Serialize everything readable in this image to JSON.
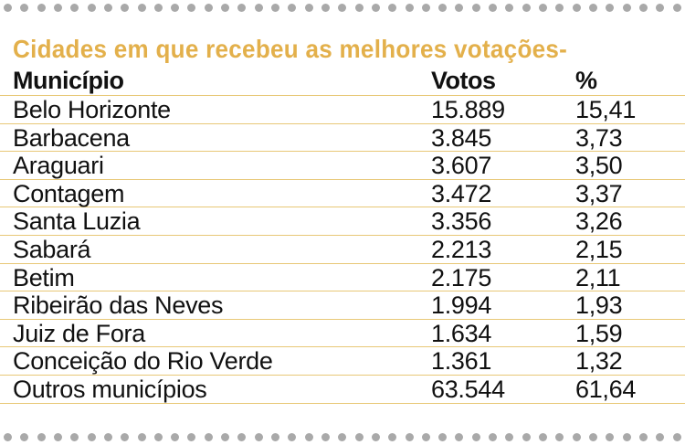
{
  "title": "Cidades em que recebeu as melhores votações-",
  "columns": {
    "municipio": "Município",
    "votos": "Votos",
    "percent": "%"
  },
  "rows": [
    {
      "municipio": "Belo Horizonte",
      "votos": "15.889",
      "percent": "15,41"
    },
    {
      "municipio": "Barbacena",
      "votos": "3.845",
      "percent": "3,73"
    },
    {
      "municipio": "Araguari",
      "votos": "3.607",
      "percent": "3,50"
    },
    {
      "municipio": "Contagem",
      "votos": "3.472",
      "percent": "3,37"
    },
    {
      "municipio": "Santa Luzia",
      "votos": "3.356",
      "percent": "3,26"
    },
    {
      "municipio": "Sabará",
      "votos": "2.213",
      "percent": "2,15"
    },
    {
      "municipio": "Betim",
      "votos": "2.175",
      "percent": "2,11"
    },
    {
      "municipio": "Ribeirão das Neves",
      "votos": "1.994",
      "percent": "1,93"
    },
    {
      "municipio": "Juiz de Fora",
      "votos": "1.634",
      "percent": "1,59"
    },
    {
      "municipio": "Conceição do Rio Verde",
      "votos": "1.361",
      "percent": "1,32"
    },
    {
      "municipio": "Outros municípios",
      "votos": "63.544",
      "percent": "61,64"
    }
  ],
  "colors": {
    "title": "#e3b04b",
    "rule": "#e8c877",
    "dots": "#a9a9a9",
    "text": "#111111"
  }
}
